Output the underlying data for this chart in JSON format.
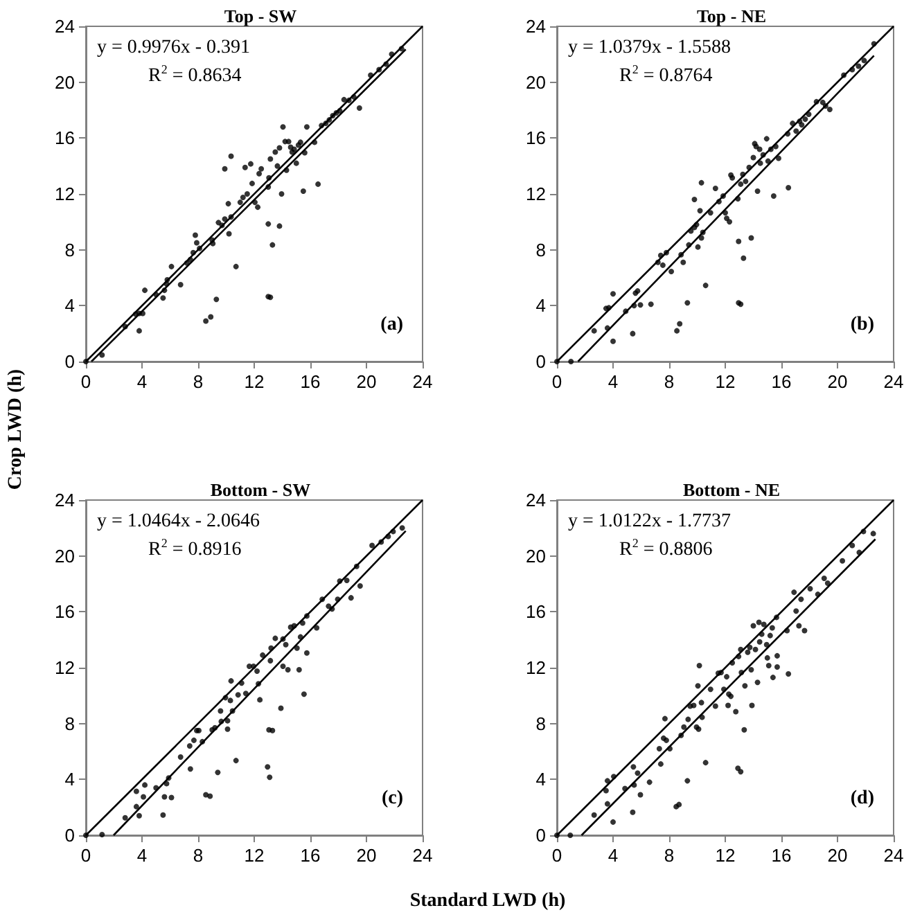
{
  "chart_data": [
    {
      "type": "scatter",
      "title": "Top - SW",
      "ylabel": "Crop LWD (h)",
      "xlim": [
        0,
        24
      ],
      "ylim": [
        0,
        24
      ],
      "xticks": [
        0,
        4,
        8,
        12,
        16,
        20,
        24
      ],
      "yticks": [
        0,
        4,
        8,
        12,
        16,
        20,
        24
      ],
      "annotations": [
        "y = 0.9976x - 0.391",
        "R$^{2}$ = 0.8634",
        "(a)"
      ],
      "series": [
        {
          "type": "scatter",
          "color": "#000000",
          "marker": "circle",
          "x": [
            0,
            1.15,
            2.8,
            3.55,
            3.8,
            4.05,
            3.8,
            4.2,
            5.0,
            5.5,
            5.6,
            5.75,
            5.8,
            6.1,
            6.75,
            7.2,
            7.45,
            7.65,
            7.8,
            7.9,
            8.1,
            8.55,
            8.9,
            9.0,
            9.05,
            9.3,
            9.45,
            9.7,
            9.9,
            10.2,
            10.35,
            10.15,
            10.35,
            9.9,
            10.7,
            11.0,
            11.2,
            11.35,
            11.5,
            11.75,
            11.85,
            12.05,
            12.25,
            12.35,
            12.5,
            13.0,
            13.05,
            13.0,
            13.0,
            13.15,
            13.15,
            13.3,
            13.5,
            13.65,
            13.8,
            13.8,
            13.95,
            14.05,
            14.2,
            14.3,
            14.45,
            14.6,
            14.7,
            14.85,
            15.0,
            15.15,
            15.3,
            15.5,
            15.6,
            15.75,
            16.3,
            16.55,
            16.8,
            17.1,
            17.35,
            17.6,
            17.85,
            18.1,
            18.4,
            18.75,
            19.1,
            19.5,
            20.3,
            20.9,
            21.4,
            21.8,
            22.5
          ],
          "values": [
            0,
            0.47,
            2.5,
            3.4,
            3.45,
            3.45,
            2.2,
            5.1,
            4.8,
            4.55,
            5.1,
            5.55,
            5.85,
            6.8,
            5.5,
            7.05,
            7.3,
            7.8,
            9.05,
            8.5,
            8.1,
            2.9,
            3.2,
            8.7,
            8.45,
            4.45,
            9.95,
            9.75,
            10.2,
            9.15,
            10.35,
            11.3,
            14.7,
            13.8,
            6.8,
            11.4,
            11.75,
            13.9,
            12.0,
            14.15,
            12.75,
            11.4,
            11.05,
            13.45,
            13.8,
            12.5,
            13.15,
            9.85,
            4.65,
            4.6,
            14.5,
            8.35,
            15.0,
            14.0,
            15.3,
            9.7,
            12.0,
            16.8,
            15.75,
            13.7,
            15.75,
            15.35,
            15.0,
            15.2,
            14.2,
            15.5,
            15.7,
            12.2,
            14.95,
            16.8,
            15.7,
            12.7,
            16.9,
            17.05,
            17.3,
            17.6,
            17.8,
            17.95,
            18.75,
            18.7,
            18.95,
            18.15,
            20.5,
            20.9,
            21.3,
            22.0,
            22.4
          ]
        },
        {
          "type": "line",
          "color": "#000000",
          "marker": "none",
          "line_style": "solid",
          "x": [
            0,
            24
          ],
          "values": [
            0,
            24
          ]
        },
        {
          "type": "line",
          "color": "#000000",
          "marker": "none",
          "line_style": "solid",
          "x": [
            0.392,
            22.8
          ],
          "values": [
            0,
            22.35
          ]
        }
      ]
    },
    {
      "type": "scatter",
      "title": "Top - NE",
      "xlim": [
        0,
        24
      ],
      "ylim": [
        0,
        24
      ],
      "xticks": [
        0,
        4,
        8,
        12,
        16,
        20,
        24
      ],
      "yticks": [
        0,
        4,
        8,
        12,
        16,
        20,
        24
      ],
      "annotations": [
        "y = 1.0379x - 1.5588",
        "R$^{2}$ = 0.8764",
        "(b)"
      ],
      "series": [
        {
          "type": "scatter",
          "color": "#000000",
          "marker": "circle",
          "x": [
            0,
            1.0,
            2.65,
            3.6,
            4.0,
            3.5,
            3.7,
            4.0,
            4.9,
            5.4,
            5.5,
            5.6,
            5.75,
            5.95,
            6.7,
            7.2,
            7.4,
            7.55,
            7.8,
            8.15,
            8.55,
            8.75,
            8.85,
            9.0,
            9.3,
            9.4,
            9.55,
            9.8,
            9.95,
            10.05,
            10.2,
            10.3,
            10.3,
            9.8,
            10.4,
            10.6,
            10.95,
            11.3,
            11.55,
            11.85,
            12.0,
            12.1,
            12.3,
            12.4,
            12.5,
            12.9,
            12.95,
            12.95,
            13.1,
            13.1,
            13.25,
            13.3,
            13.45,
            13.7,
            13.85,
            14.0,
            14.1,
            14.2,
            14.3,
            14.45,
            14.5,
            14.7,
            14.95,
            15.05,
            15.25,
            15.45,
            15.6,
            15.8,
            16.45,
            16.5,
            16.8,
            17.05,
            17.3,
            17.45,
            17.7,
            17.95,
            18.5,
            18.95,
            19.15,
            19.45,
            20.45,
            21.05,
            21.5,
            21.9,
            22.6
          ],
          "values": [
            0,
            0,
            2.2,
            2.4,
            1.45,
            3.8,
            3.85,
            4.85,
            3.6,
            2.0,
            4.0,
            4.9,
            5.05,
            4.05,
            4.1,
            7.1,
            7.6,
            6.9,
            7.8,
            6.45,
            2.2,
            2.7,
            7.65,
            7.1,
            4.2,
            8.35,
            9.35,
            9.6,
            9.8,
            8.2,
            10.8,
            8.85,
            12.8,
            11.6,
            9.25,
            5.45,
            10.65,
            12.4,
            11.45,
            11.85,
            10.65,
            10.25,
            10.0,
            13.35,
            13.15,
            11.65,
            8.6,
            4.2,
            4.1,
            12.7,
            13.4,
            7.4,
            12.9,
            13.9,
            8.85,
            14.6,
            15.6,
            15.4,
            12.2,
            15.2,
            14.2,
            14.8,
            15.95,
            14.35,
            15.2,
            11.85,
            15.4,
            14.55,
            16.3,
            12.45,
            17.05,
            16.5,
            17.2,
            16.95,
            17.35,
            17.7,
            18.6,
            18.55,
            18.3,
            18.05,
            20.5,
            20.9,
            21.15,
            21.55,
            22.75
          ]
        },
        {
          "type": "line",
          "color": "#000000",
          "marker": "none",
          "line_style": "solid",
          "x": [
            0,
            24
          ],
          "values": [
            0,
            24
          ]
        },
        {
          "type": "line",
          "color": "#000000",
          "marker": "none",
          "line_style": "solid",
          "x": [
            1.502,
            22.6
          ],
          "values": [
            0,
            21.9
          ]
        }
      ]
    },
    {
      "type": "scatter",
      "title": "Bottom - SW",
      "xlabel": "Standard LWD (h)",
      "xlim": [
        0,
        24
      ],
      "ylim": [
        0,
        24
      ],
      "xticks": [
        0,
        4,
        8,
        12,
        16,
        20,
        24
      ],
      "yticks": [
        0,
        4,
        8,
        12,
        16,
        20,
        24
      ],
      "annotations": [
        "y = 1.0464x - 2.0646",
        "R$^{2}$ = 0.8916",
        "(c)"
      ],
      "series": [
        {
          "type": "scatter",
          "color": "#000000",
          "marker": "circle",
          "x": [
            0,
            1.15,
            2.8,
            3.6,
            3.8,
            3.6,
            4.1,
            4.2,
            5.0,
            5.5,
            5.6,
            5.75,
            5.9,
            6.1,
            6.75,
            7.45,
            7.4,
            7.7,
            7.9,
            8.05,
            8.3,
            8.55,
            8.85,
            9.0,
            9.2,
            9.4,
            9.6,
            9.65,
            9.95,
            10.1,
            10.3,
            10.1,
            10.35,
            10.45,
            10.7,
            10.85,
            11.1,
            11.4,
            11.65,
            11.95,
            12.2,
            12.3,
            12.4,
            12.6,
            12.95,
            13.05,
            13.1,
            13.3,
            13.15,
            13.2,
            13.5,
            13.9,
            14.05,
            14.05,
            14.25,
            14.4,
            14.6,
            14.85,
            15.05,
            15.2,
            15.3,
            15.45,
            15.55,
            15.75,
            15.75,
            16.45,
            16.85,
            17.3,
            17.55,
            17.95,
            18.1,
            18.6,
            18.9,
            19.3,
            19.55,
            20.4,
            21.05,
            21.55,
            21.9,
            22.55
          ],
          "values": [
            0,
            0.05,
            1.25,
            2.05,
            1.4,
            3.15,
            2.75,
            3.6,
            3.4,
            1.45,
            2.75,
            3.7,
            4.1,
            2.7,
            5.6,
            4.75,
            6.4,
            6.8,
            7.5,
            7.5,
            6.7,
            2.9,
            2.8,
            7.55,
            7.7,
            4.5,
            8.9,
            8.15,
            9.85,
            8.2,
            9.65,
            7.6,
            11.05,
            8.9,
            5.35,
            10.05,
            10.9,
            10.15,
            12.1,
            12.1,
            11.75,
            10.85,
            9.7,
            12.9,
            4.9,
            7.55,
            4.15,
            7.5,
            12.5,
            13.4,
            14.1,
            9.1,
            14.05,
            12.1,
            13.65,
            11.85,
            14.9,
            15.0,
            13.4,
            11.85,
            14.2,
            15.2,
            10.1,
            13.05,
            15.7,
            14.85,
            16.9,
            16.4,
            16.2,
            16.9,
            18.2,
            18.25,
            17.0,
            19.25,
            17.85,
            20.75,
            21.0,
            21.4,
            21.75,
            22.0
          ]
        },
        {
          "type": "line",
          "color": "#000000",
          "marker": "none",
          "line_style": "solid",
          "x": [
            0,
            24
          ],
          "values": [
            0,
            24
          ]
        },
        {
          "type": "line",
          "color": "#000000",
          "marker": "none",
          "line_style": "solid",
          "x": [
            1.973,
            22.8
          ],
          "values": [
            0,
            21.79
          ]
        }
      ]
    },
    {
      "type": "scatter",
      "title": "Bottom - NE",
      "xlim": [
        0,
        24
      ],
      "ylim": [
        0,
        24
      ],
      "xticks": [
        0,
        4,
        8,
        12,
        16,
        20,
        24
      ],
      "yticks": [
        0,
        4,
        8,
        12,
        16,
        20,
        24
      ],
      "annotations": [
        "y = 1.0122x - 1.7737",
        "R$^{2}$ = 0.8806",
        "(d)"
      ],
      "series": [
        {
          "type": "scatter",
          "color": "#000000",
          "marker": "circle",
          "x": [
            0,
            0.95,
            2.65,
            3.5,
            3.6,
            3.6,
            4.0,
            4.05,
            4.85,
            5.4,
            5.45,
            5.5,
            5.75,
            5.95,
            6.6,
            7.3,
            7.4,
            7.6,
            7.8,
            7.7,
            8.05,
            8.5,
            8.7,
            8.85,
            9.05,
            9.3,
            9.35,
            9.5,
            9.75,
            9.95,
            10.05,
            10.1,
            10.15,
            10.3,
            10.35,
            10.6,
            10.95,
            11.3,
            11.5,
            11.7,
            11.9,
            12.1,
            12.2,
            12.25,
            12.4,
            12.5,
            12.75,
            12.9,
            13.1,
            12.95,
            13.1,
            13.15,
            13.35,
            13.4,
            13.6,
            13.75,
            13.85,
            13.9,
            14.0,
            14.15,
            14.3,
            14.4,
            14.45,
            14.6,
            14.75,
            14.95,
            15.0,
            15.1,
            15.2,
            15.35,
            15.4,
            15.65,
            15.7,
            15.7,
            16.5,
            16.4,
            16.9,
            17.05,
            17.25,
            17.4,
            17.65,
            18.05,
            18.6,
            19.05,
            19.3,
            20.35,
            21.05,
            21.55,
            21.85,
            22.55
          ],
          "values": [
            0,
            0,
            1.45,
            3.2,
            3.9,
            2.25,
            0.95,
            4.2,
            3.35,
            1.65,
            4.9,
            3.6,
            4.45,
            2.9,
            3.8,
            6.2,
            5.1,
            6.95,
            6.8,
            8.35,
            6.2,
            2.05,
            2.2,
            7.15,
            7.75,
            3.9,
            8.3,
            9.25,
            9.3,
            7.75,
            10.7,
            7.6,
            12.15,
            9.5,
            8.45,
            5.2,
            10.45,
            9.25,
            11.6,
            11.65,
            10.45,
            11.35,
            9.3,
            10.1,
            9.95,
            12.35,
            8.85,
            4.8,
            4.55,
            12.8,
            13.3,
            11.65,
            7.55,
            10.7,
            13.1,
            13.45,
            11.85,
            9.3,
            15.0,
            13.3,
            10.95,
            15.25,
            13.85,
            14.4,
            15.1,
            13.65,
            12.7,
            12.15,
            14.3,
            14.85,
            11.3,
            15.6,
            12.85,
            12.05,
            11.55,
            14.65,
            17.4,
            16.05,
            15.0,
            16.9,
            14.65,
            17.65,
            17.25,
            18.4,
            18.05,
            19.65,
            20.75,
            20.25,
            21.75,
            21.6
          ]
        },
        {
          "type": "line",
          "color": "#000000",
          "marker": "none",
          "line_style": "solid",
          "x": [
            0,
            24
          ],
          "values": [
            0,
            24
          ]
        },
        {
          "type": "line",
          "color": "#000000",
          "marker": "none",
          "line_style": "solid",
          "x": [
            1.752,
            22.7
          ],
          "values": [
            0,
            21.2
          ]
        }
      ]
    }
  ]
}
